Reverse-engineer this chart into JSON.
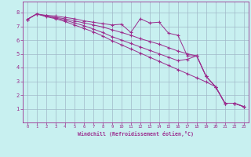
{
  "xlabel": "Windchill (Refroidissement éolien,°C)",
  "bg_color": "#c8f0f0",
  "grid_color": "#a0b8c8",
  "line_color": "#9b2d8e",
  "xlim": [
    -0.5,
    23.5
  ],
  "ylim": [
    0,
    8.8
  ],
  "xticks": [
    0,
    1,
    2,
    3,
    4,
    5,
    6,
    7,
    8,
    9,
    10,
    11,
    12,
    13,
    14,
    15,
    16,
    17,
    18,
    19,
    20,
    21,
    22,
    23
  ],
  "yticks": [
    1,
    2,
    3,
    4,
    5,
    6,
    7,
    8
  ],
  "line1_x": [
    0,
    1,
    2,
    3,
    4,
    5,
    6,
    7,
    8,
    9,
    10,
    11,
    12,
    13,
    14,
    15,
    16,
    17,
    18,
    19,
    20,
    21,
    22,
    23
  ],
  "line1_y": [
    7.5,
    7.9,
    7.8,
    7.75,
    7.65,
    7.55,
    7.4,
    7.3,
    7.2,
    7.1,
    7.15,
    6.55,
    7.55,
    7.25,
    7.3,
    6.5,
    6.35,
    4.85,
    4.85,
    3.35,
    2.6,
    1.4,
    1.4,
    1.15
  ],
  "line2_x": [
    0,
    1,
    2,
    3,
    4,
    5,
    6,
    7,
    8,
    9,
    10,
    11,
    12,
    13,
    14,
    15,
    16,
    17,
    18,
    19,
    20,
    21,
    22,
    23
  ],
  "line2_y": [
    7.5,
    7.9,
    7.75,
    7.65,
    7.55,
    7.4,
    7.25,
    7.1,
    6.95,
    6.75,
    6.55,
    6.35,
    6.1,
    5.9,
    5.7,
    5.45,
    5.2,
    5.0,
    4.85,
    3.35,
    2.6,
    1.4,
    1.4,
    1.15
  ],
  "line3_x": [
    0,
    1,
    2,
    3,
    4,
    5,
    6,
    7,
    8,
    9,
    10,
    11,
    12,
    13,
    14,
    15,
    16,
    17,
    18,
    19,
    20,
    21,
    22,
    23
  ],
  "line3_y": [
    7.5,
    7.9,
    7.75,
    7.6,
    7.45,
    7.25,
    7.05,
    6.8,
    6.55,
    6.25,
    6.0,
    5.75,
    5.5,
    5.25,
    5.0,
    4.75,
    4.5,
    4.6,
    4.85,
    3.35,
    2.6,
    1.4,
    1.4,
    1.15
  ],
  "line4_x": [
    0,
    1,
    2,
    3,
    4,
    5,
    6,
    7,
    8,
    9,
    10,
    11,
    12,
    13,
    14,
    15,
    16,
    17,
    18,
    19,
    20,
    21,
    22,
    23
  ],
  "line4_y": [
    7.5,
    7.9,
    7.7,
    7.55,
    7.35,
    7.1,
    6.85,
    6.6,
    6.3,
    5.95,
    5.65,
    5.35,
    5.05,
    4.75,
    4.45,
    4.15,
    3.85,
    3.55,
    3.25,
    2.95,
    2.6,
    1.4,
    1.4,
    1.15
  ]
}
